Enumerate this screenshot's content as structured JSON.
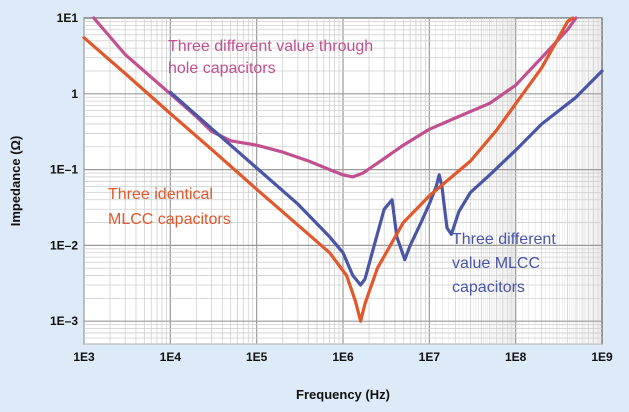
{
  "chart_data": {
    "type": "line",
    "title": "",
    "xlabel": "Frequency (Hz)",
    "ylabel": "Impedance (Ω)",
    "x_scale": "log",
    "y_scale": "log",
    "xlim": [
      1000,
      1000000000
    ],
    "ylim": [
      0.0005,
      10
    ],
    "grid": true,
    "x_ticks": [
      {
        "value": 1000,
        "label": "1E3"
      },
      {
        "value": 10000,
        "label": "1E4"
      },
      {
        "value": 100000,
        "label": "1E5"
      },
      {
        "value": 1000000,
        "label": "1E6"
      },
      {
        "value": 10000000,
        "label": "1E7"
      },
      {
        "value": 100000000,
        "label": "1E8"
      },
      {
        "value": 1000000000,
        "label": "1E9"
      }
    ],
    "y_ticks": [
      {
        "value": 0.001,
        "label": "1E–3"
      },
      {
        "value": 0.01,
        "label": "1E–2"
      },
      {
        "value": 0.1,
        "label": "1E–1"
      },
      {
        "value": 1,
        "label": "1"
      },
      {
        "value": 10,
        "label": "1E1"
      }
    ],
    "series": [
      {
        "color": "#c0508f",
        "points": [
          [
            1300,
            10
          ],
          [
            3000,
            3.3
          ],
          [
            10000,
            1.0
          ],
          [
            20000,
            0.5
          ],
          [
            30000,
            0.32
          ],
          [
            50000,
            0.24
          ],
          [
            100000,
            0.21
          ],
          [
            200000,
            0.17
          ],
          [
            400000,
            0.13
          ],
          [
            700000,
            0.1
          ],
          [
            1000000,
            0.085
          ],
          [
            1300000,
            0.08
          ],
          [
            1700000,
            0.09
          ],
          [
            3000000,
            0.14
          ],
          [
            5000000,
            0.21
          ],
          [
            10000000,
            0.34
          ],
          [
            20000000,
            0.48
          ],
          [
            50000000,
            0.75
          ],
          [
            100000000,
            1.3
          ],
          [
            200000000,
            3.0
          ],
          [
            400000000,
            7.0
          ],
          [
            500000000,
            10
          ]
        ]
      },
      {
        "color": "#4b55a6",
        "points": [
          [
            10000,
            1.05
          ],
          [
            30000,
            0.35
          ],
          [
            100000,
            0.105
          ],
          [
            300000,
            0.035
          ],
          [
            700000,
            0.013
          ],
          [
            1000000,
            0.008
          ],
          [
            1300000,
            0.004
          ],
          [
            1600000,
            0.003
          ],
          [
            1800000,
            0.0036
          ],
          [
            2300000,
            0.01
          ],
          [
            3000000,
            0.03
          ],
          [
            3700000,
            0.04
          ],
          [
            4200000,
            0.013
          ],
          [
            5200000,
            0.0065
          ],
          [
            6000000,
            0.01
          ],
          [
            8000000,
            0.02
          ],
          [
            10000000,
            0.035
          ],
          [
            12000000,
            0.06
          ],
          [
            13000000,
            0.085
          ],
          [
            14000000,
            0.06
          ],
          [
            16000000,
            0.017
          ],
          [
            18000000,
            0.014
          ],
          [
            22000000,
            0.028
          ],
          [
            30000000,
            0.05
          ],
          [
            50000000,
            0.085
          ],
          [
            100000000,
            0.18
          ],
          [
            200000000,
            0.4
          ],
          [
            500000000,
            0.9
          ],
          [
            1000000000,
            2.0
          ]
        ]
      },
      {
        "color": "#e0582b",
        "points": [
          [
            1000,
            5.5
          ],
          [
            3000,
            1.85
          ],
          [
            10000,
            0.55
          ],
          [
            30000,
            0.185
          ],
          [
            100000,
            0.055
          ],
          [
            300000,
            0.0185
          ],
          [
            700000,
            0.008
          ],
          [
            1100000,
            0.004
          ],
          [
            1400000,
            0.0018
          ],
          [
            1600000,
            0.001
          ],
          [
            1800000,
            0.0017
          ],
          [
            2500000,
            0.005
          ],
          [
            5000000,
            0.02
          ],
          [
            10000000,
            0.045
          ],
          [
            30000000,
            0.13
          ],
          [
            60000000,
            0.33
          ],
          [
            200000000,
            2.2
          ],
          [
            400000000,
            9.0
          ],
          [
            460000000,
            10
          ]
        ]
      }
    ],
    "annotations": [
      {
        "lines": [
          "Three different value through",
          "hole capacitors"
        ],
        "color": "#c0508f"
      },
      {
        "lines": [
          "Three identical",
          "MLCC capacitors"
        ],
        "color": "#e0582b"
      },
      {
        "lines": [
          "Three different",
          "value MLCC",
          "capacitors"
        ],
        "color": "#4b55a6"
      }
    ]
  }
}
